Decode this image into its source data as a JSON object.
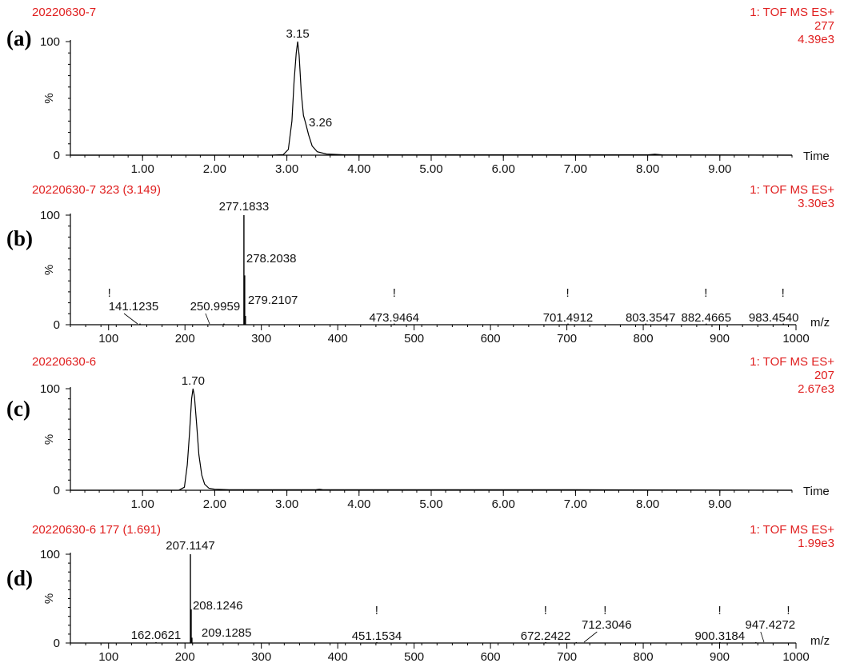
{
  "panels": [
    {
      "id": "a",
      "panel_label": "(a)",
      "header_left": "20220630-7",
      "header_right": [
        "1: TOF MS ES+",
        "277",
        "4.39e3"
      ],
      "y_top_label": "100",
      "y_bottom_label": "0",
      "y_unit": "%",
      "x_unit": "Time"
    },
    {
      "id": "b",
      "panel_label": "(b)",
      "header_left": "20220630-7 323 (3.149)",
      "header_right": [
        "1: TOF MS ES+",
        "3.30e3"
      ],
      "y_top_label": "100",
      "y_bottom_label": "0",
      "y_unit": "%",
      "x_unit": "m/z"
    },
    {
      "id": "c",
      "panel_label": "(c)",
      "header_left": "20220630-6",
      "header_right": [
        "1: TOF MS ES+",
        "207",
        "2.67e3"
      ],
      "y_top_label": "100",
      "y_bottom_label": "0",
      "y_unit": "%",
      "x_unit": "Time"
    },
    {
      "id": "d",
      "panel_label": "(d)",
      "header_left": "20220630-6 177 (1.691)",
      "header_right": [
        "1: TOF MS ES+",
        "1.99e3"
      ],
      "y_top_label": "100",
      "y_bottom_label": "0",
      "y_unit": "%",
      "x_unit": "m/z"
    }
  ],
  "chart_data": [
    {
      "type": "line",
      "panel": "a",
      "xlabel": "Time",
      "ylabel": "%",
      "xlim": [
        0,
        10.0
      ],
      "ylim": [
        0,
        100
      ],
      "xticks": [
        "1.00",
        "2.00",
        "3.00",
        "4.00",
        "5.00",
        "6.00",
        "7.00",
        "8.00",
        "9.00"
      ],
      "xtick_values": [
        1,
        2,
        3,
        4,
        5,
        6,
        7,
        8,
        9
      ],
      "x": [
        0.0,
        2.8,
        2.95,
        3.02,
        3.07,
        3.1,
        3.13,
        3.15,
        3.17,
        3.2,
        3.23,
        3.26,
        3.3,
        3.35,
        3.42,
        3.55,
        3.8,
        5.0,
        8.0,
        8.1,
        8.2,
        10.0
      ],
      "y": [
        0,
        0,
        0.5,
        5,
        30,
        65,
        90,
        100,
        88,
        55,
        35,
        28,
        18,
        8,
        3,
        1,
        0.3,
        0.3,
        0.3,
        0.8,
        0.3,
        0
      ],
      "peak_labels": [
        {
          "x": 3.15,
          "y": 100,
          "label": "3.15"
        },
        {
          "x": 3.26,
          "y": 28,
          "label": "3.26"
        }
      ]
    },
    {
      "type": "bar",
      "panel": "b",
      "xlabel": "m/z",
      "ylabel": "%",
      "xlim": [
        50,
        1000
      ],
      "ylim": [
        0,
        100
      ],
      "xticks": [
        "100",
        "200",
        "300",
        "400",
        "500",
        "600",
        "700",
        "800",
        "900",
        "1000"
      ],
      "xtick_values": [
        100,
        200,
        300,
        400,
        500,
        600,
        700,
        800,
        900,
        1000
      ],
      "peaks": [
        {
          "mz": 277.1833,
          "intensity": 100,
          "label": "277.1833"
        },
        {
          "mz": 278.2038,
          "intensity": 45,
          "label": "278.2038"
        },
        {
          "mz": 279.2107,
          "intensity": 8,
          "label": "279.2107"
        },
        {
          "mz": 141.1235,
          "intensity": 0.5,
          "label": "141.1235"
        },
        {
          "mz": 250.9959,
          "intensity": 0.5,
          "label": "250.9959"
        },
        {
          "mz": 473.9464,
          "intensity": 0.5,
          "label": "473.9464"
        },
        {
          "mz": 701.4912,
          "intensity": 0.5,
          "label": "701.4912"
        },
        {
          "mz": 803.3547,
          "intensity": 0.5,
          "label": "803.3547"
        },
        {
          "mz": 882.4665,
          "intensity": 0.5,
          "label": "882.4665"
        },
        {
          "mz": 983.454,
          "intensity": 0.5,
          "label": "983.4540"
        }
      ],
      "markers": [
        {
          "mz": 101,
          "symbol": "!"
        },
        {
          "mz": 474,
          "symbol": "!"
        },
        {
          "mz": 701,
          "symbol": "!"
        },
        {
          "mz": 882,
          "symbol": "!"
        },
        {
          "mz": 983,
          "symbol": "!"
        }
      ]
    },
    {
      "type": "line",
      "panel": "c",
      "xlabel": "Time",
      "ylabel": "%",
      "xlim": [
        0,
        10.0
      ],
      "ylim": [
        0,
        100
      ],
      "xticks": [
        "1.00",
        "2.00",
        "3.00",
        "4.00",
        "5.00",
        "6.00",
        "7.00",
        "8.00",
        "9.00"
      ],
      "xtick_values": [
        1,
        2,
        3,
        4,
        5,
        6,
        7,
        8,
        9
      ],
      "x": [
        0.0,
        1.5,
        1.58,
        1.62,
        1.65,
        1.68,
        1.7,
        1.72,
        1.75,
        1.78,
        1.82,
        1.86,
        1.92,
        2.0,
        2.2,
        3.4,
        3.45,
        3.5,
        7.0,
        10.0
      ],
      "y": [
        0,
        0,
        3,
        25,
        55,
        90,
        100,
        92,
        65,
        35,
        15,
        6,
        2,
        1,
        0.5,
        0.5,
        1,
        0.5,
        0.5,
        0
      ],
      "peak_labels": [
        {
          "x": 1.7,
          "y": 100,
          "label": "1.70"
        }
      ]
    },
    {
      "type": "bar",
      "panel": "d",
      "xlabel": "m/z",
      "ylabel": "%",
      "xlim": [
        50,
        1000
      ],
      "ylim": [
        0,
        100
      ],
      "xticks": [
        "100",
        "200",
        "300",
        "400",
        "500",
        "600",
        "700",
        "800",
        "900",
        "1000"
      ],
      "xtick_values": [
        100,
        200,
        300,
        400,
        500,
        600,
        700,
        800,
        900,
        1000
      ],
      "peaks": [
        {
          "mz": 207.1147,
          "intensity": 100,
          "label": "207.1147"
        },
        {
          "mz": 208.1246,
          "intensity": 38,
          "label": "208.1246"
        },
        {
          "mz": 209.1285,
          "intensity": 6,
          "label": "209.1285"
        },
        {
          "mz": 162.0621,
          "intensity": 0.5,
          "label": "162.0621"
        },
        {
          "mz": 451.1534,
          "intensity": 0.5,
          "label": "451.1534"
        },
        {
          "mz": 672.2422,
          "intensity": 0.5,
          "label": "672.2422"
        },
        {
          "mz": 712.3046,
          "intensity": 0.5,
          "label": "712.3046"
        },
        {
          "mz": 900.3184,
          "intensity": 0.5,
          "label": "900.3184"
        },
        {
          "mz": 947.4272,
          "intensity": 0.5,
          "label": "947.4272"
        }
      ],
      "markers": [
        {
          "mz": 451,
          "symbol": "!"
        },
        {
          "mz": 672,
          "symbol": "!"
        },
        {
          "mz": 750,
          "symbol": "!"
        },
        {
          "mz": 900,
          "symbol": "!"
        },
        {
          "mz": 990,
          "symbol": "!"
        }
      ]
    }
  ]
}
